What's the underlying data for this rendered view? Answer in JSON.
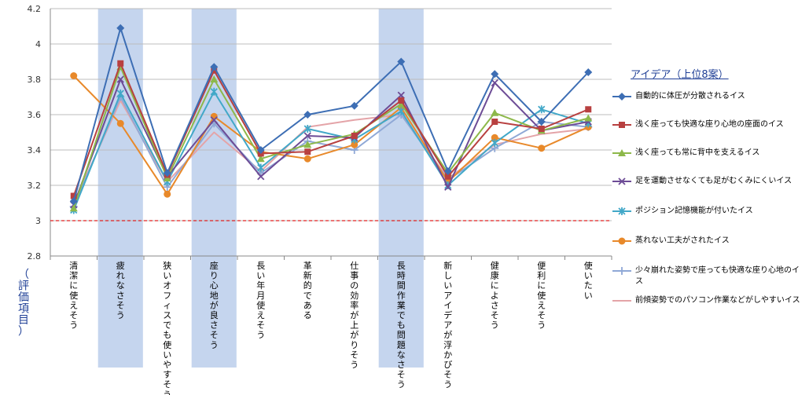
{
  "chart_data": {
    "type": "line",
    "title": "",
    "xlabel": "（評価項目）",
    "ylabel": "",
    "ylim": [
      2.8,
      4.2
    ],
    "yticks": [
      "2.8",
      "3",
      "3.2",
      "3.4",
      "3.6",
      "3.8",
      "4",
      "4.2"
    ],
    "reference_line": {
      "y": 3.0,
      "color": "#e02020",
      "style": "dashed"
    },
    "highlighted_categories": [
      "疲れなさそう",
      "座り心地が良さそう",
      "長時間作業でも問題なさそう"
    ],
    "highlight_color": "#c5d5ee",
    "grid": "horizontal",
    "legend_title": "アイデア（上位8案）",
    "legend_position": "right",
    "categories": [
      "清潔に使えそう",
      "疲れなさそう",
      "狭いオフィスでも使いやすそう",
      "座り心地が良さそう",
      "長い年月使えそう",
      "革新的である",
      "仕事の効率が上がりそう",
      "長時間作業でも問題なさそう",
      "新しいアイデアが浮かびそう",
      "健康によさそう",
      "便利に使えそう",
      "使いたい"
    ],
    "series": [
      {
        "name": "自動的に体圧が分散されるイス",
        "color": "#3d6eb4",
        "marker": "diamond",
        "values": [
          3.11,
          4.09,
          3.27,
          3.87,
          3.4,
          3.6,
          3.65,
          3.9,
          3.28,
          3.83,
          3.56,
          3.84
        ]
      },
      {
        "name": "浅く座っても快適な座り心地の座面のイス",
        "color": "#b84040",
        "marker": "square",
        "values": [
          3.14,
          3.89,
          3.26,
          3.85,
          3.38,
          3.39,
          3.48,
          3.68,
          3.25,
          3.56,
          3.52,
          3.63
        ]
      },
      {
        "name": "浅く座っても常に背中を支えるイス",
        "color": "#8db84a",
        "marker": "triangle",
        "values": [
          3.07,
          3.87,
          3.24,
          3.8,
          3.35,
          3.43,
          3.49,
          3.66,
          3.27,
          3.61,
          3.51,
          3.58
        ]
      },
      {
        "name": "足を運動させなくても足がむくみにくいイス",
        "color": "#6d4c96",
        "marker": "x",
        "values": [
          3.09,
          3.8,
          3.25,
          3.57,
          3.25,
          3.48,
          3.47,
          3.71,
          3.19,
          3.78,
          3.51,
          3.56
        ]
      },
      {
        "name": "ポジション記憶機能が付いたイス",
        "color": "#42a8c8",
        "marker": "star",
        "values": [
          3.06,
          3.72,
          3.22,
          3.73,
          3.3,
          3.52,
          3.46,
          3.62,
          3.2,
          3.44,
          3.63,
          3.55
        ]
      },
      {
        "name": "蒸れない工夫がされたイス",
        "color": "#e8892a",
        "marker": "circle",
        "values": [
          3.82,
          3.55,
          3.15,
          3.59,
          3.39,
          3.35,
          3.43,
          3.64,
          3.22,
          3.47,
          3.41,
          3.53
        ]
      },
      {
        "name": "少々崩れた姿勢で座っても快適な座り心地のイス",
        "color": "#8fa8d6",
        "marker": "plus",
        "values": [
          3.08,
          3.7,
          3.19,
          3.55,
          3.27,
          3.45,
          3.4,
          3.6,
          3.23,
          3.41,
          3.56,
          3.53
        ]
      },
      {
        "name": "前傾姿勢でのパソコン作業などがしやすいイス",
        "color": "#e4a4a8",
        "marker": "none",
        "values": [
          3.1,
          3.68,
          3.22,
          3.5,
          3.28,
          3.53,
          3.57,
          3.6,
          3.24,
          3.43,
          3.49,
          3.52
        ]
      }
    ]
  }
}
